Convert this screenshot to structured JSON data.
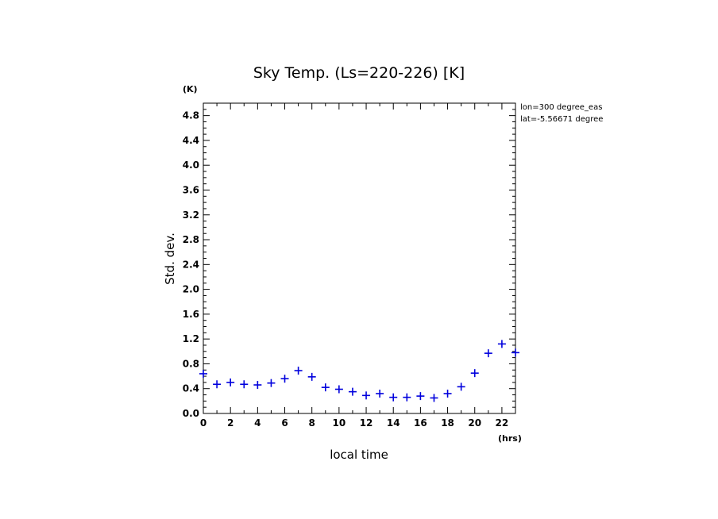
{
  "chart_data": {
    "type": "scatter",
    "title": "Sky Temp. (Ls=220-226) [K]",
    "xlabel": "local time",
    "ylabel": "Std. dev.",
    "x_unit": "(hrs)",
    "y_unit": "(K)",
    "xlim": [
      0,
      23
    ],
    "ylim": [
      0,
      5.0
    ],
    "x_ticks": [
      0,
      2,
      4,
      6,
      8,
      10,
      12,
      14,
      16,
      18,
      20,
      22
    ],
    "y_ticks": [
      0.0,
      0.4,
      0.8,
      1.2,
      1.6,
      2.0,
      2.4,
      2.8,
      3.2,
      3.6,
      4.0,
      4.4,
      4.8
    ],
    "y_tick_labels": [
      "0.0",
      "0.4",
      "0.8",
      "1.2",
      "1.6",
      "2.0",
      "2.4",
      "2.8",
      "3.2",
      "3.6",
      "4.0",
      "4.4",
      "4.8"
    ],
    "grid": false,
    "marker": "plus",
    "marker_color": "#0000dd",
    "annotations": [
      "lon=300 degree_eas",
      "lat=-5.56671 degree"
    ],
    "series": [
      {
        "x": [
          0,
          1,
          2,
          3,
          4,
          5,
          6,
          7,
          8,
          9,
          10,
          11,
          12,
          13,
          14,
          15,
          16,
          17,
          18,
          19,
          20,
          21,
          22,
          23
        ],
        "values": [
          0.64,
          0.47,
          0.5,
          0.47,
          0.46,
          0.49,
          0.56,
          0.69,
          0.59,
          0.42,
          0.39,
          0.35,
          0.29,
          0.32,
          0.26,
          0.26,
          0.28,
          0.25,
          0.32,
          0.43,
          0.65,
          0.97,
          1.12,
          0.98
        ]
      }
    ]
  }
}
